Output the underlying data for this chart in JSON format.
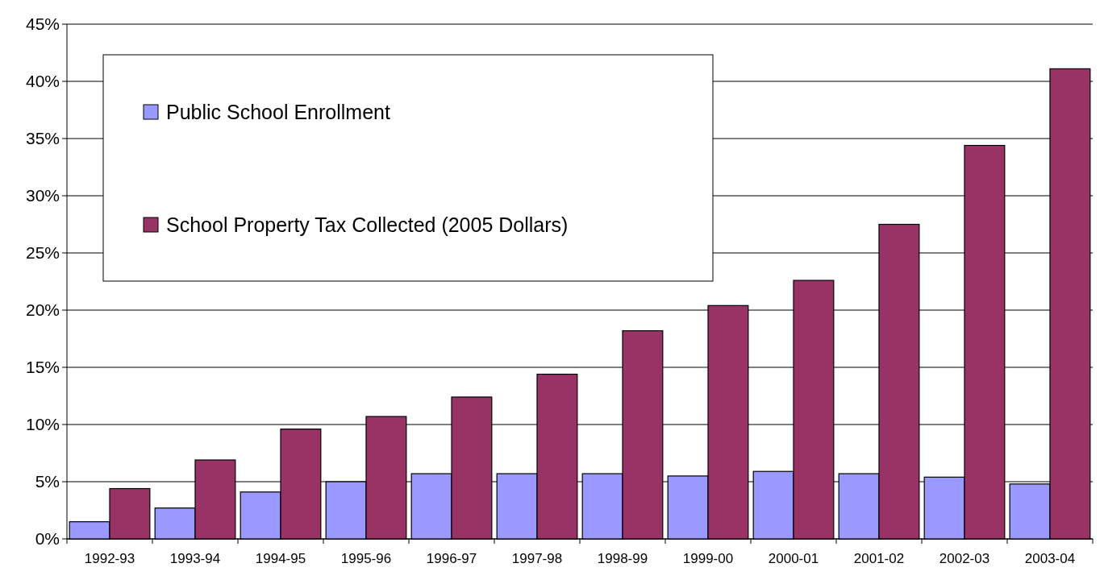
{
  "chart_data": {
    "type": "bar",
    "categories": [
      "1992-93",
      "1993-94",
      "1994-95",
      "1995-96",
      "1996-97",
      "1997-98",
      "1998-99",
      "1999-00",
      "2000-01",
      "2001-02",
      "2002-03",
      "2003-04"
    ],
    "series": [
      {
        "name": "Public School Enrollment",
        "color": "#9999ff",
        "values": [
          1.5,
          2.7,
          4.1,
          5.0,
          5.7,
          5.7,
          5.7,
          5.5,
          5.9,
          5.7,
          5.4,
          4.8
        ]
      },
      {
        "name": "School Property Tax Collected (2005 Dollars)",
        "color": "#993366",
        "values": [
          4.4,
          6.9,
          9.6,
          10.7,
          12.4,
          14.4,
          18.2,
          20.4,
          22.6,
          27.5,
          34.4,
          41.1
        ]
      }
    ],
    "ylim": [
      0,
      45
    ],
    "yticks": [
      {
        "value": 0,
        "label": "0%"
      },
      {
        "value": 5,
        "label": "5%"
      },
      {
        "value": 10,
        "label": "10%"
      },
      {
        "value": 15,
        "label": "15%"
      },
      {
        "value": 20,
        "label": "20%"
      },
      {
        "value": 25,
        "label": "25%"
      },
      {
        "value": 30,
        "label": "30%"
      },
      {
        "value": 35,
        "label": "35%"
      },
      {
        "value": 40,
        "label": "40%"
      },
      {
        "value": 45,
        "label": "45%"
      }
    ],
    "grid": "y",
    "legend": "top left"
  }
}
